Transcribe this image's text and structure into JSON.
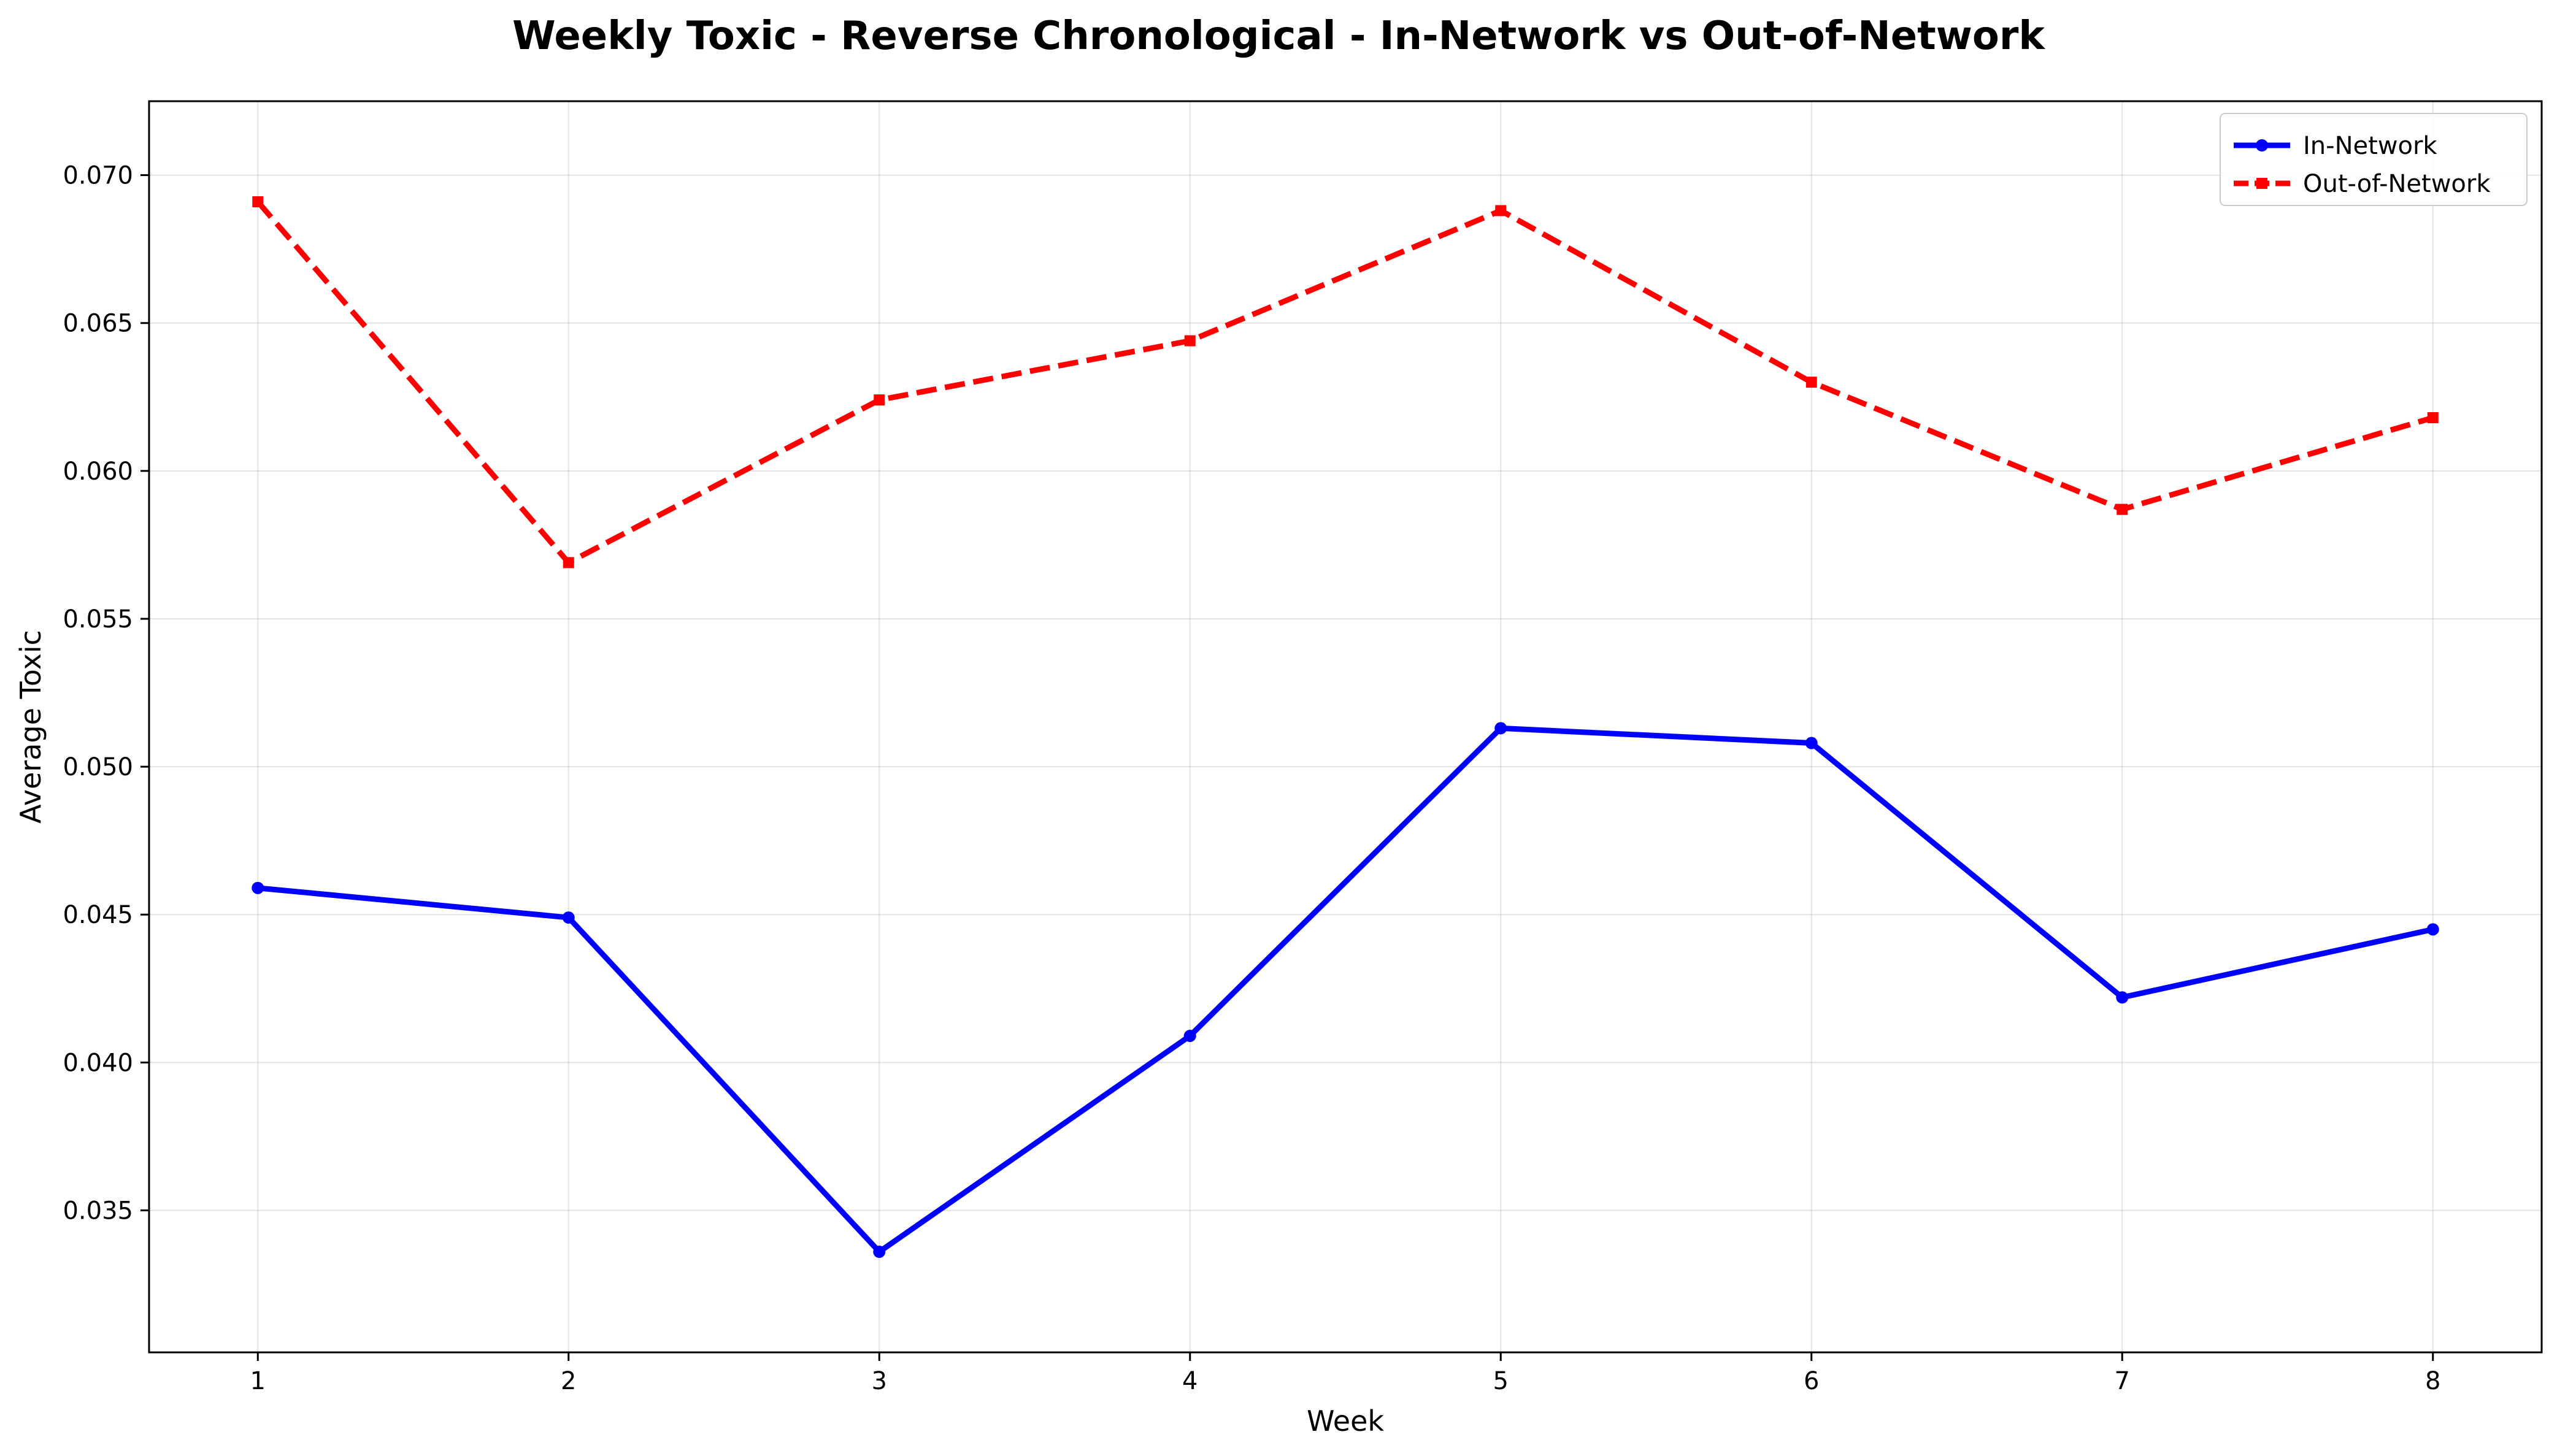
{
  "chart_data": {
    "type": "line",
    "title": "Weekly Toxic - Reverse Chronological - In-Network vs Out-of-Network",
    "xlabel": "Week",
    "ylabel": "Average Toxic",
    "x": [
      1,
      2,
      3,
      4,
      5,
      6,
      7,
      8
    ],
    "xticks": [
      "1",
      "2",
      "3",
      "4",
      "5",
      "6",
      "7",
      "8"
    ],
    "yticks": [
      "0.035",
      "0.040",
      "0.045",
      "0.050",
      "0.055",
      "0.060",
      "0.065",
      "0.070"
    ],
    "xlim": [
      0.65,
      8.35
    ],
    "ylim": [
      0.0302,
      0.0725
    ],
    "grid": true,
    "legend_position": "top-right",
    "series": [
      {
        "name": "In-Network",
        "color": "#0000ff",
        "line_style": "solid",
        "marker": "circle",
        "values": [
          0.0459,
          0.0449,
          0.0336,
          0.0409,
          0.0513,
          0.0508,
          0.0422,
          0.0445
        ]
      },
      {
        "name": "Out-of-Network",
        "color": "#ff0000",
        "line_style": "dashed",
        "marker": "square",
        "values": [
          0.0691,
          0.0569,
          0.0624,
          0.0644,
          0.0688,
          0.063,
          0.0587,
          0.0618
        ]
      }
    ]
  }
}
